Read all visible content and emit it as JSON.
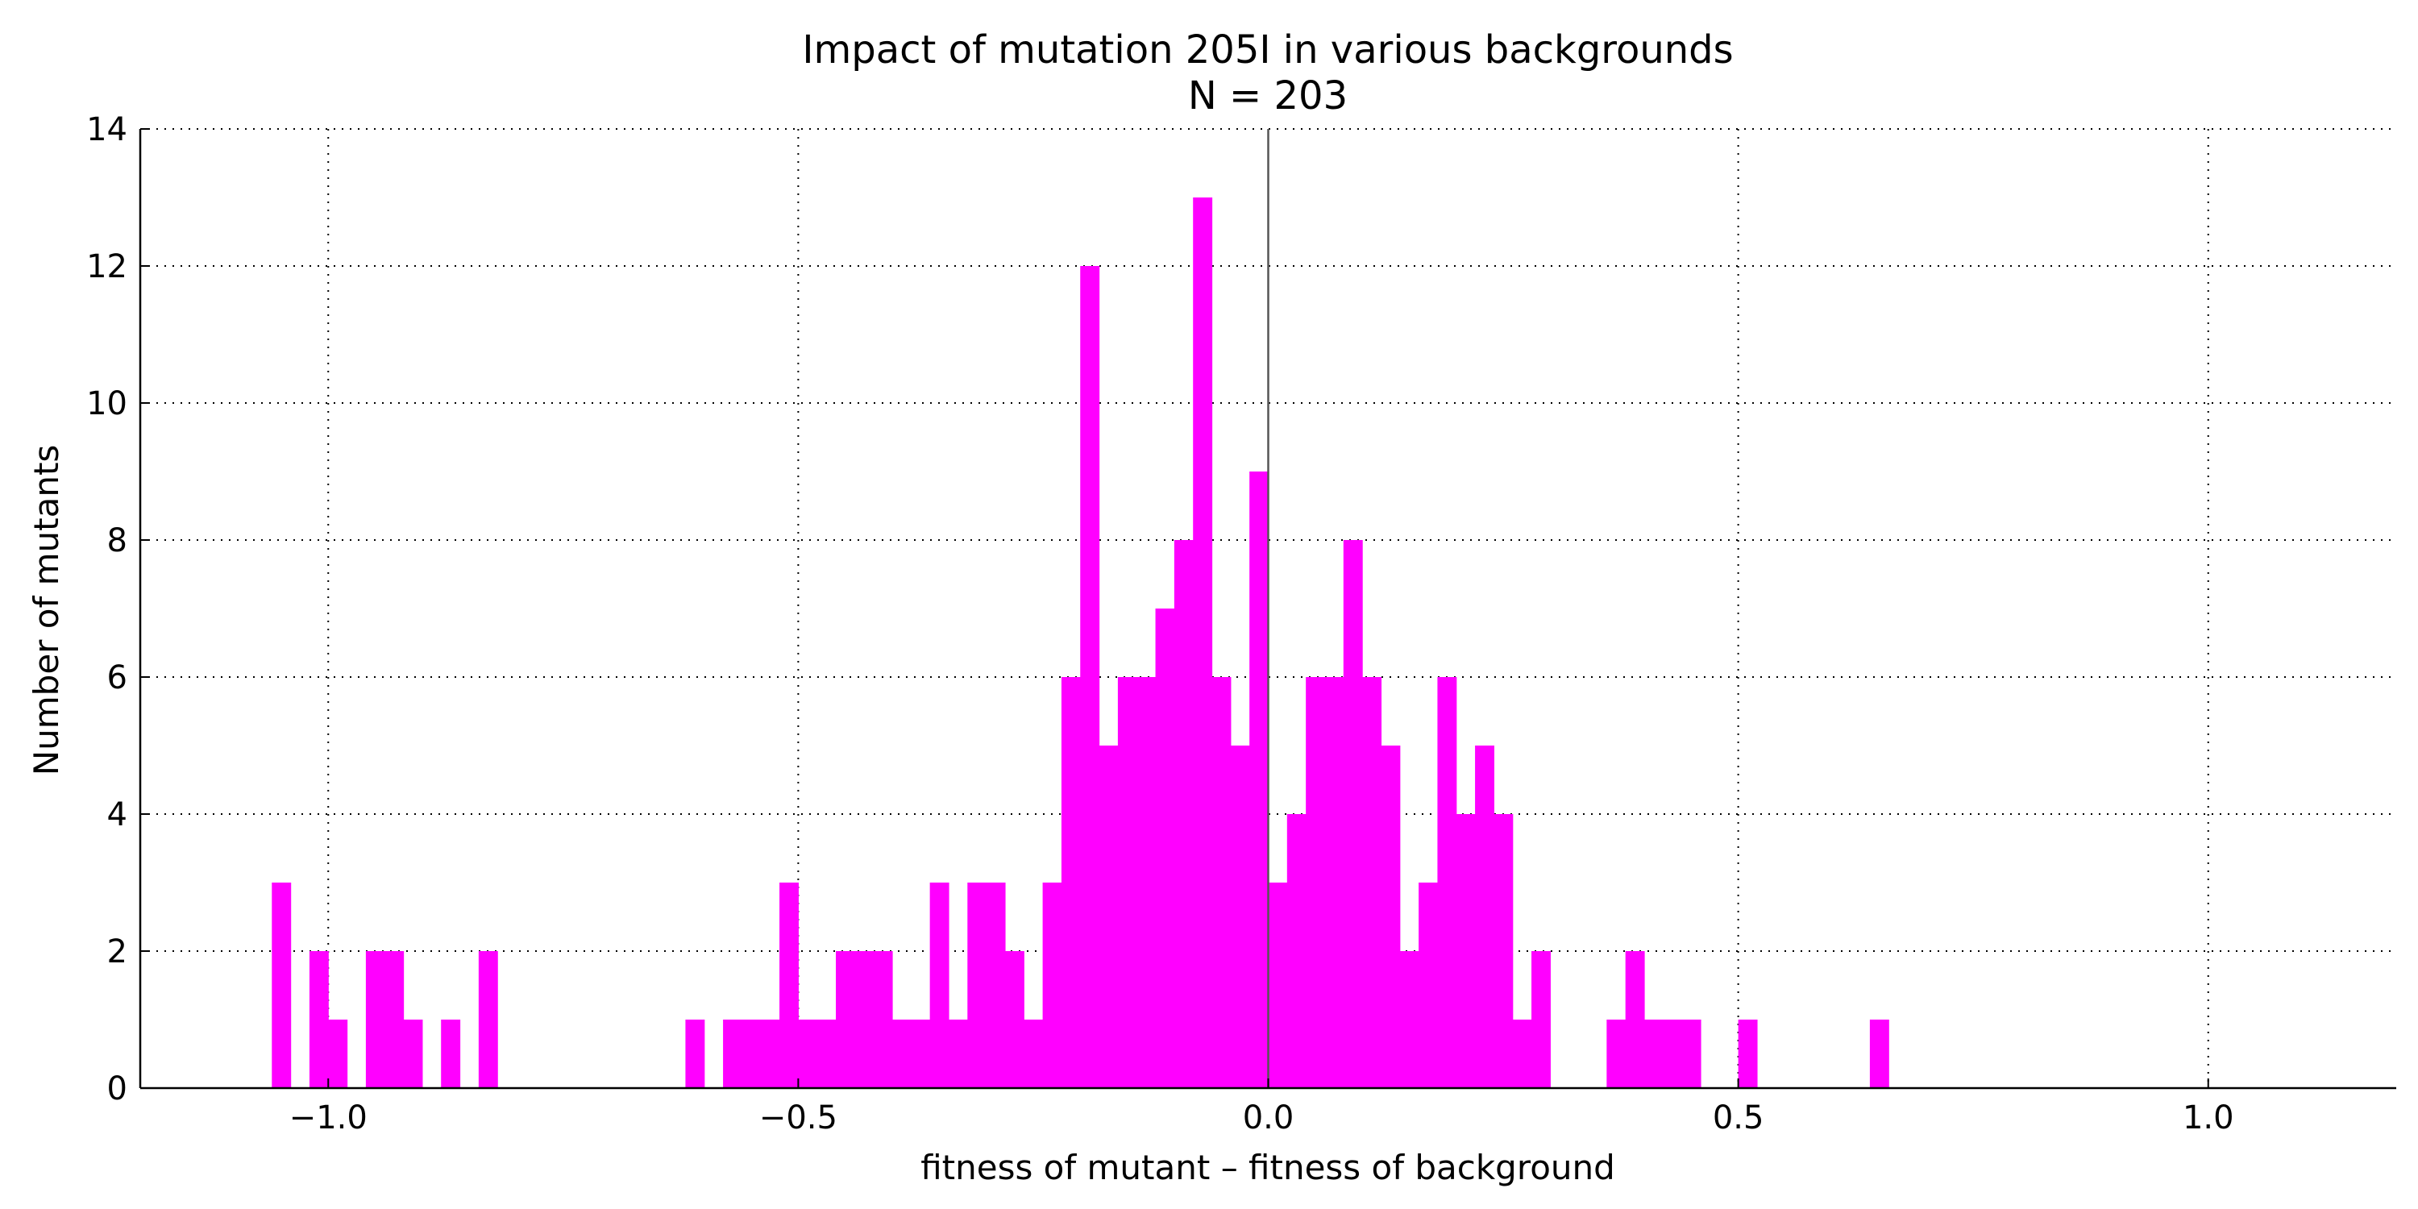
{
  "chart_data": {
    "type": "bar",
    "title": "Impact of mutation 205I in various backgrounds",
    "subtitle": "N = 203",
    "xlabel": "fitness of mutant  –  fitness of background",
    "ylabel": "Number of mutants",
    "xlim": [
      -1.2,
      1.2
    ],
    "ylim": [
      0,
      14
    ],
    "xticks": [
      -1.0,
      -0.5,
      0.0,
      0.5,
      1.0
    ],
    "xtick_labels": [
      "−1.0",
      "−0.5",
      "0.0",
      "0.5",
      "1.0"
    ],
    "yticks": [
      0,
      2,
      4,
      6,
      8,
      10,
      12,
      14
    ],
    "ytick_labels": [
      "0",
      "2",
      "4",
      "6",
      "8",
      "10",
      "12",
      "14"
    ],
    "grid": true,
    "vertical_reference_line_x": 0.0,
    "bin_width": 0.02,
    "bins": [
      {
        "x": -1.06,
        "count": 3
      },
      {
        "x": -1.02,
        "count": 2
      },
      {
        "x": -1.0,
        "count": 1
      },
      {
        "x": -0.96,
        "count": 2
      },
      {
        "x": -0.94,
        "count": 2
      },
      {
        "x": -0.92,
        "count": 1
      },
      {
        "x": -0.88,
        "count": 1
      },
      {
        "x": -0.84,
        "count": 2
      },
      {
        "x": -0.62,
        "count": 1
      },
      {
        "x": -0.58,
        "count": 1
      },
      {
        "x": -0.56,
        "count": 1
      },
      {
        "x": -0.54,
        "count": 1
      },
      {
        "x": -0.52,
        "count": 3
      },
      {
        "x": -0.5,
        "count": 1
      },
      {
        "x": -0.48,
        "count": 1
      },
      {
        "x": -0.46,
        "count": 2
      },
      {
        "x": -0.44,
        "count": 2
      },
      {
        "x": -0.42,
        "count": 2
      },
      {
        "x": -0.4,
        "count": 1
      },
      {
        "x": -0.38,
        "count": 1
      },
      {
        "x": -0.36,
        "count": 3
      },
      {
        "x": -0.34,
        "count": 1
      },
      {
        "x": -0.32,
        "count": 3
      },
      {
        "x": -0.3,
        "count": 3
      },
      {
        "x": -0.28,
        "count": 2
      },
      {
        "x": -0.26,
        "count": 1
      },
      {
        "x": -0.24,
        "count": 3
      },
      {
        "x": -0.22,
        "count": 6
      },
      {
        "x": -0.2,
        "count": 12
      },
      {
        "x": -0.18,
        "count": 5
      },
      {
        "x": -0.16,
        "count": 6
      },
      {
        "x": -0.14,
        "count": 6
      },
      {
        "x": -0.12,
        "count": 7
      },
      {
        "x": -0.1,
        "count": 8
      },
      {
        "x": -0.08,
        "count": 13
      },
      {
        "x": -0.06,
        "count": 6
      },
      {
        "x": -0.04,
        "count": 5
      },
      {
        "x": -0.02,
        "count": 9
      },
      {
        "x": 0.0,
        "count": 3
      },
      {
        "x": 0.02,
        "count": 4
      },
      {
        "x": 0.04,
        "count": 6
      },
      {
        "x": 0.06,
        "count": 6
      },
      {
        "x": 0.08,
        "count": 8
      },
      {
        "x": 0.1,
        "count": 6
      },
      {
        "x": 0.12,
        "count": 5
      },
      {
        "x": 0.14,
        "count": 2
      },
      {
        "x": 0.16,
        "count": 3
      },
      {
        "x": 0.18,
        "count": 6
      },
      {
        "x": 0.2,
        "count": 4
      },
      {
        "x": 0.22,
        "count": 5
      },
      {
        "x": 0.24,
        "count": 4
      },
      {
        "x": 0.26,
        "count": 1
      },
      {
        "x": 0.28,
        "count": 2
      },
      {
        "x": 0.36,
        "count": 1
      },
      {
        "x": 0.38,
        "count": 2
      },
      {
        "x": 0.4,
        "count": 1
      },
      {
        "x": 0.42,
        "count": 1
      },
      {
        "x": 0.44,
        "count": 1
      },
      {
        "x": 0.5,
        "count": 1
      },
      {
        "x": 0.64,
        "count": 1
      }
    ],
    "bar_color": "#ff00ff",
    "grid_color": "#000000",
    "axis_color": "#000000"
  }
}
